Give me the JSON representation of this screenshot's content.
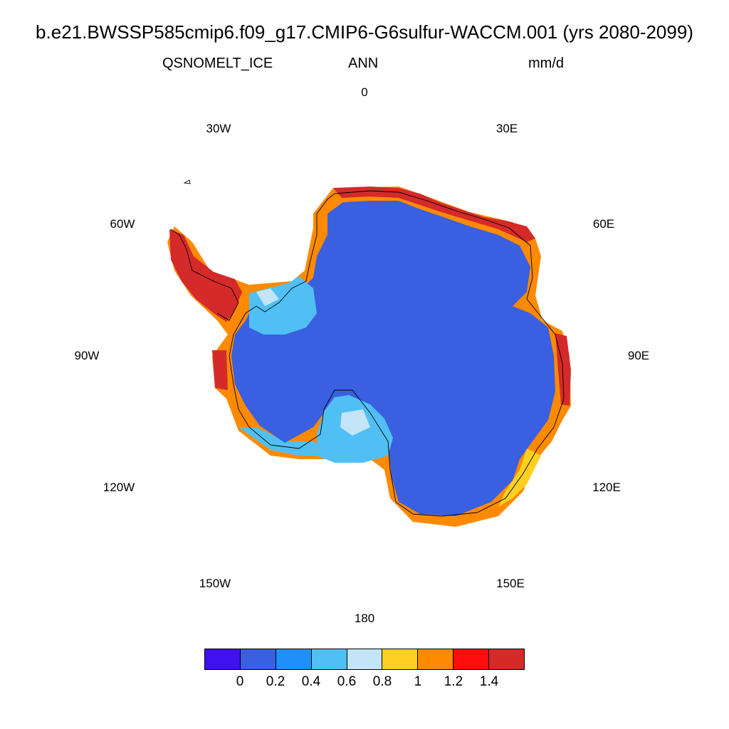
{
  "title": "b.e21.BWSSP585cmip6.f09_g17.CMIP6-G6sulfur-WACCM.001 (yrs 2080-2099)",
  "left_subtitle": "QSNOMELT_ICE",
  "center_subtitle": "ANN",
  "right_subtitle": "mm/d",
  "lon_labels": {
    "n0": "0",
    "e30": "30E",
    "e60": "60E",
    "e90": "90E",
    "e120": "120E",
    "e150": "150E",
    "s180": "180",
    "w150": "150W",
    "w120": "120W",
    "w90": "90W",
    "w60": "60W",
    "w30": "30W"
  },
  "colorbar": {
    "colors": [
      "#4010f0",
      "#3a5fe0",
      "#1e90f8",
      "#50c0f4",
      "#c4e4f8",
      "#ffd020",
      "#ff8a00",
      "#ff0d0d",
      "#d42a2a"
    ],
    "ticks": [
      "0",
      "0.2",
      "0.4",
      "0.6",
      "0.8",
      "1",
      "1.2",
      "1.4"
    ]
  },
  "map": {
    "projection": "south-polar-stereographic",
    "region": "Antarctica",
    "interior_color": "#3a5fe0",
    "margin_colors": [
      "#ffd020",
      "#ff8a00",
      "#ff0d0d",
      "#d42a2a",
      "#50c0f4",
      "#c4e4f8"
    ]
  }
}
